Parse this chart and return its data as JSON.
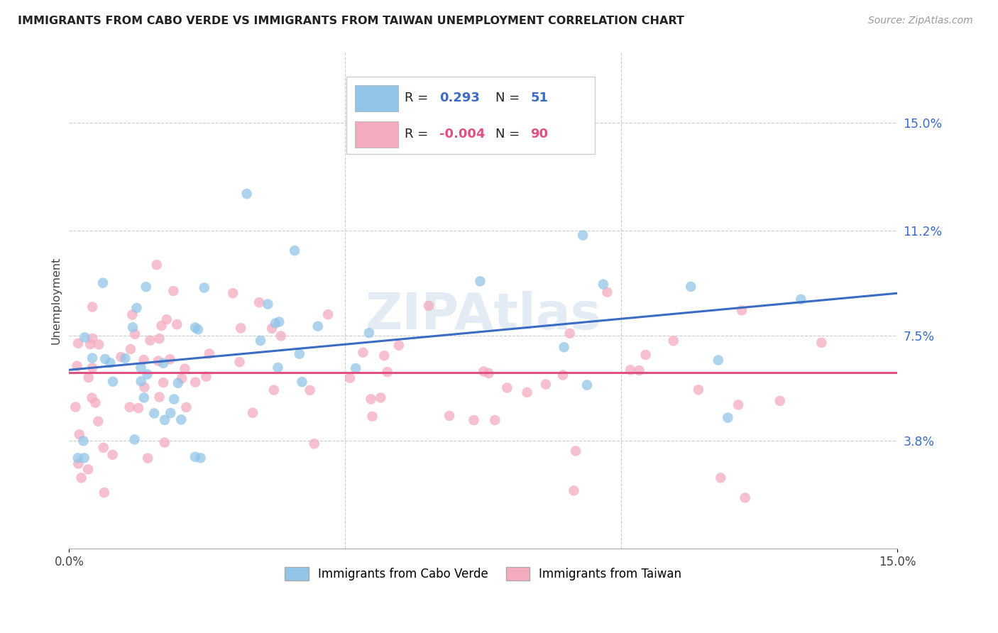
{
  "title": "IMMIGRANTS FROM CABO VERDE VS IMMIGRANTS FROM TAIWAN UNEMPLOYMENT CORRELATION CHART",
  "source": "Source: ZipAtlas.com",
  "ylabel": "Unemployment",
  "xlim": [
    0.0,
    0.15
  ],
  "ylim": [
    0.0,
    0.175
  ],
  "ytick_vals": [
    0.038,
    0.075,
    0.112,
    0.15
  ],
  "ytick_labels": [
    "3.8%",
    "7.5%",
    "11.2%",
    "15.0%"
  ],
  "xtick_vals": [
    0.0,
    0.15
  ],
  "xtick_labels": [
    "0.0%",
    "15.0%"
  ],
  "cabo_verde_R": 0.293,
  "cabo_verde_N": 51,
  "taiwan_R": -0.004,
  "taiwan_N": 90,
  "cabo_verde_color": "#92C5E8",
  "taiwan_color": "#F4ABBE",
  "cabo_verde_line_color": "#3B6CC4",
  "taiwan_line_color": "#E05080",
  "background_color": "#FFFFFF",
  "watermark": "ZIPAtlas",
  "grid_color": "#CCCCCC",
  "right_tick_color": "#3B6CC4",
  "legend_R_cv_color": "#3B6CC4",
  "legend_R_tw_color": "#E05080",
  "legend_N_cv_color": "#3B6CC4",
  "legend_N_tw_color": "#E05080"
}
